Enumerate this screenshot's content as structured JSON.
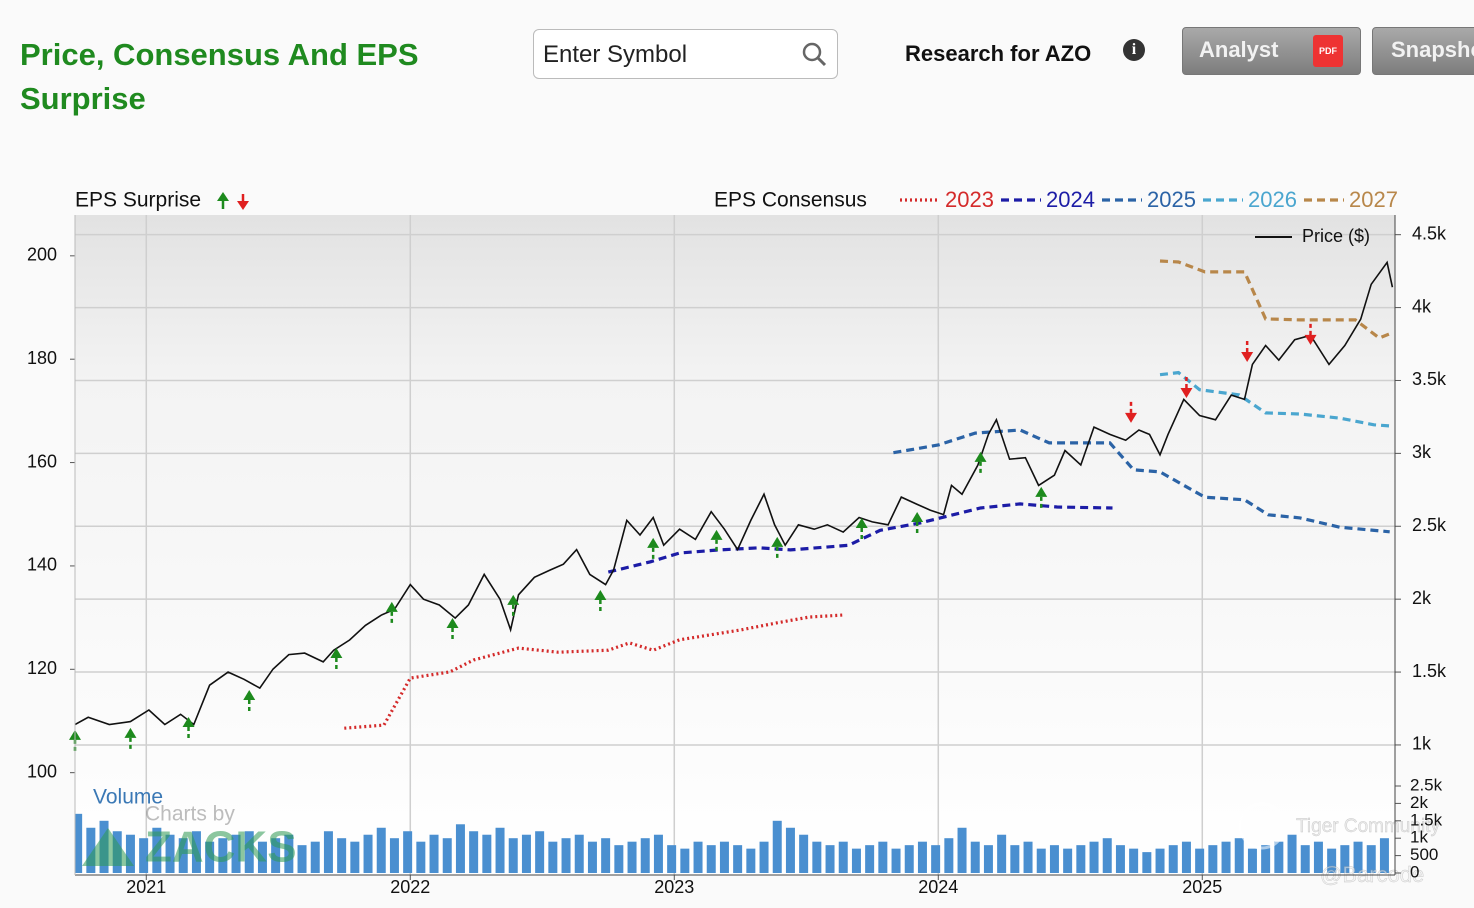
{
  "header": {
    "title": "Price, Consensus And EPS Surprise",
    "search_placeholder": "Enter Symbol",
    "research": "Research for AZO",
    "buttons": [
      "Analyst",
      "Snapshot"
    ]
  },
  "chart_data": [
    {
      "type": "line",
      "legend_titles": {
        "surprise": "EPS Surprise",
        "consensus": "EPS Consensus"
      },
      "xlim": [
        2020.73,
        2025.73
      ],
      "xticks": [
        2021,
        2022,
        2023,
        2024,
        2025
      ],
      "ylim": [
        80.2,
        207.9
      ],
      "yticks": [
        100,
        120,
        140,
        160,
        180,
        200
      ],
      "y2lim": [
        108,
        4635
      ],
      "y2ticks": [
        {
          "value": 1000,
          "label": "1k"
        },
        {
          "value": 1500,
          "label": "1.5k"
        },
        {
          "value": 2000,
          "label": "2k"
        },
        {
          "value": 2500,
          "label": "2.5k"
        },
        {
          "value": 3000,
          "label": "3k"
        },
        {
          "value": 3500,
          "label": "3.5k"
        },
        {
          "value": 4000,
          "label": "4k"
        },
        {
          "value": 4500,
          "label": "4.5k"
        }
      ],
      "grid": true,
      "series": [
        {
          "name": "2023",
          "color": "#d42a2a",
          "dash": "dotted",
          "x": [
            2021.75,
            2021.9,
            2022.0,
            2022.15,
            2022.24,
            2022.41,
            2022.56,
            2022.75,
            2022.83,
            2022.92,
            2023.02,
            2023.25,
            2023.4,
            2023.51,
            2023.64
          ],
          "values": [
            108.6,
            109.2,
            118.3,
            119.5,
            121.8,
            124.1,
            123.3,
            123.7,
            125.1,
            123.7,
            125.7,
            127.6,
            129.1,
            130.1,
            130.5
          ]
        },
        {
          "name": "2024",
          "color": "#1c1ca6",
          "dash": "dashed",
          "x": [
            2022.75,
            2022.91,
            2023.02,
            2023.17,
            2023.32,
            2023.44,
            2023.66,
            2023.78,
            2023.93,
            2024.08,
            2024.16,
            2024.31,
            2024.45,
            2024.66
          ],
          "values": [
            138.8,
            140.8,
            142.5,
            143.1,
            143.5,
            143.1,
            144.0,
            146.9,
            148.3,
            150.2,
            151.2,
            152.0,
            151.4,
            151.2
          ]
        },
        {
          "name": "2025",
          "color": "#2b63a6",
          "dash": "dashed",
          "x": [
            2023.83,
            2024.0,
            2024.14,
            2024.31,
            2024.42,
            2024.65,
            2024.74,
            2024.84,
            2025.01,
            2025.16,
            2025.25,
            2025.37,
            2025.52,
            2025.71
          ],
          "values": [
            161.9,
            163.4,
            165.7,
            166.3,
            163.8,
            163.8,
            158.6,
            158.2,
            153.3,
            152.8,
            149.9,
            149.3,
            147.5,
            146.6
          ]
        },
        {
          "name": "2026",
          "color": "#4aa6cf",
          "dash": "dashed",
          "x": [
            2024.84,
            2024.91,
            2024.99,
            2025.14,
            2025.24,
            2025.37,
            2025.52,
            2025.65,
            2025.71
          ],
          "values": [
            177.0,
            177.4,
            174.1,
            173.1,
            169.6,
            169.4,
            168.6,
            167.3,
            167.1
          ]
        },
        {
          "name": "2027",
          "color": "#b8874a",
          "dash": "dashed",
          "x": [
            2024.84,
            2024.91,
            2025.01,
            2025.16,
            2025.24,
            2025.37,
            2025.58,
            2025.67,
            2025.72
          ],
          "values": [
            199.0,
            198.8,
            196.9,
            196.9,
            187.8,
            187.6,
            187.6,
            184.1,
            185.1
          ]
        },
        {
          "name": "Price ($)",
          "color": "#111111",
          "dash": "solid",
          "axis": "y2",
          "x": [
            2020.73,
            2020.78,
            2020.86,
            2020.94,
            2021.01,
            2021.07,
            2021.13,
            2021.18,
            2021.24,
            2021.31,
            2021.37,
            2021.43,
            2021.48,
            2021.54,
            2021.6,
            2021.67,
            2021.71,
            2021.77,
            2021.83,
            2021.89,
            2021.94,
            2022.0,
            2022.05,
            2022.11,
            2022.17,
            2022.22,
            2022.28,
            2022.34,
            2022.38,
            2022.41,
            2022.47,
            2022.53,
            2022.58,
            2022.63,
            2022.68,
            2022.74,
            2022.77,
            2022.82,
            2022.87,
            2022.92,
            2022.96,
            2023.02,
            2023.08,
            2023.14,
            2023.19,
            2023.24,
            2023.29,
            2023.34,
            2023.38,
            2023.42,
            2023.47,
            2023.53,
            2023.58,
            2023.64,
            2023.7,
            2023.75,
            2023.81,
            2023.86,
            2023.92,
            2023.97,
            2024.02,
            2024.05,
            2024.09,
            2024.15,
            2024.19,
            2024.22,
            2024.27,
            2024.33,
            2024.38,
            2024.44,
            2024.48,
            2024.54,
            2024.59,
            2024.65,
            2024.71,
            2024.76,
            2024.8,
            2024.84,
            2024.87,
            2024.93,
            2024.99,
            2025.05,
            2025.11,
            2025.16,
            2025.19,
            2025.24,
            2025.29,
            2025.35,
            2025.41,
            2025.48,
            2025.54,
            2025.6,
            2025.64,
            2025.7,
            2025.72
          ],
          "values": [
            1140,
            1190,
            1140,
            1160,
            1240,
            1140,
            1210,
            1140,
            1410,
            1500,
            1450,
            1390,
            1520,
            1620,
            1630,
            1570,
            1650,
            1720,
            1820,
            1890,
            1930,
            2100,
            2000,
            1960,
            1870,
            1960,
            2170,
            2000,
            1790,
            2030,
            2150,
            2200,
            2240,
            2340,
            2170,
            2100,
            2200,
            2540,
            2440,
            2560,
            2370,
            2480,
            2410,
            2600,
            2480,
            2340,
            2540,
            2720,
            2510,
            2370,
            2510,
            2480,
            2510,
            2460,
            2560,
            2530,
            2510,
            2700,
            2650,
            2610,
            2580,
            2780,
            2720,
            2920,
            3130,
            3230,
            2960,
            2970,
            2780,
            2850,
            3020,
            2920,
            3180,
            3130,
            3090,
            3160,
            3130,
            2990,
            3130,
            3370,
            3260,
            3230,
            3400,
            3370,
            3610,
            3740,
            3640,
            3780,
            3810,
            3610,
            3740,
            3920,
            4160,
            4310,
            4140
          ]
        }
      ],
      "surprises": [
        {
          "direction": "up",
          "color": "#1d8a1d",
          "axis": "y2",
          "x": [
            2020.73,
            2020.94,
            2021.16,
            2021.39,
            2021.72,
            2021.93,
            2022.16,
            2022.39,
            2022.72,
            2022.92,
            2023.16,
            2023.39,
            2023.71,
            2023.92,
            2024.16,
            2024.39
          ],
          "values": [
            1103,
            1117,
            1192,
            1377,
            1665,
            1981,
            1871,
            2029,
            2063,
            2420,
            2475,
            2427,
            2557,
            2598,
            3010,
            2770
          ]
        },
        {
          "direction": "down",
          "color": "#e02020",
          "axis": "y2",
          "x": [
            2024.73,
            2024.94,
            2025.17,
            2025.41
          ],
          "values": [
            3209,
            3380,
            3627,
            3744
          ]
        }
      ]
    },
    {
      "type": "bar",
      "title": "Volume",
      "color": "#4a8fd0",
      "ylim": [
        0,
        2500
      ],
      "yticks": [
        0,
        500,
        {
          "value": 1000,
          "label": "1k"
        },
        {
          "value": 1500,
          "label": "1.5k"
        },
        {
          "value": 2000,
          "label": "2k"
        },
        {
          "value": 2500,
          "label": "2.5k"
        }
      ],
      "x": [
        2020.74,
        2020.79,
        2020.84,
        2020.89,
        2020.94,
        2020.99,
        2021.04,
        2021.09,
        2021.14,
        2021.19,
        2021.24,
        2021.29,
        2021.34,
        2021.39,
        2021.44,
        2021.49,
        2021.54,
        2021.59,
        2021.64,
        2021.69,
        2021.74,
        2021.79,
        2021.84,
        2021.89,
        2021.94,
        2021.99,
        2022.04,
        2022.09,
        2022.14,
        2022.19,
        2022.24,
        2022.29,
        2022.34,
        2022.39,
        2022.44,
        2022.49,
        2022.54,
        2022.59,
        2022.64,
        2022.69,
        2022.74,
        2022.79,
        2022.84,
        2022.89,
        2022.94,
        2022.99,
        2023.04,
        2023.09,
        2023.14,
        2023.19,
        2023.24,
        2023.29,
        2023.34,
        2023.39,
        2023.44,
        2023.49,
        2023.54,
        2023.59,
        2023.64,
        2023.69,
        2023.74,
        2023.79,
        2023.84,
        2023.89,
        2023.94,
        2023.99,
        2024.04,
        2024.09,
        2024.14,
        2024.19,
        2024.24,
        2024.29,
        2024.34,
        2024.39,
        2024.44,
        2024.49,
        2024.54,
        2024.59,
        2024.64,
        2024.69,
        2024.74,
        2024.79,
        2024.84,
        2024.89,
        2024.94,
        2024.99,
        2025.04,
        2025.09,
        2025.14,
        2025.19,
        2025.24,
        2025.29,
        2025.34,
        2025.39,
        2025.44,
        2025.49,
        2025.54,
        2025.59,
        2025.64,
        2025.69
      ],
      "values": [
        1700,
        1300,
        1500,
        1200,
        1100,
        1000,
        1300,
        1100,
        1000,
        1200,
        900,
        1000,
        1100,
        1200,
        900,
        1000,
        1100,
        800,
        900,
        1200,
        1000,
        900,
        1100,
        1300,
        1000,
        1200,
        900,
        1100,
        1000,
        1400,
        1200,
        1100,
        1300,
        1000,
        1100,
        1200,
        900,
        1000,
        1100,
        900,
        1000,
        800,
        900,
        1000,
        1100,
        800,
        700,
        900,
        800,
        900,
        800,
        700,
        900,
        1500,
        1300,
        1100,
        900,
        800,
        900,
        700,
        800,
        900,
        700,
        800,
        900,
        800,
        1000,
        1300,
        900,
        800,
        1100,
        800,
        900,
        700,
        800,
        700,
        800,
        900,
        1000,
        800,
        700,
        600,
        700,
        800,
        900,
        700,
        800,
        900,
        1000,
        700,
        800,
        900,
        1100,
        800,
        900,
        700,
        800,
        900,
        800,
        1000
      ]
    }
  ],
  "watermarks": [
    "Charts by",
    "ZACKS",
    "Tiger Community",
    "@Barcode"
  ]
}
